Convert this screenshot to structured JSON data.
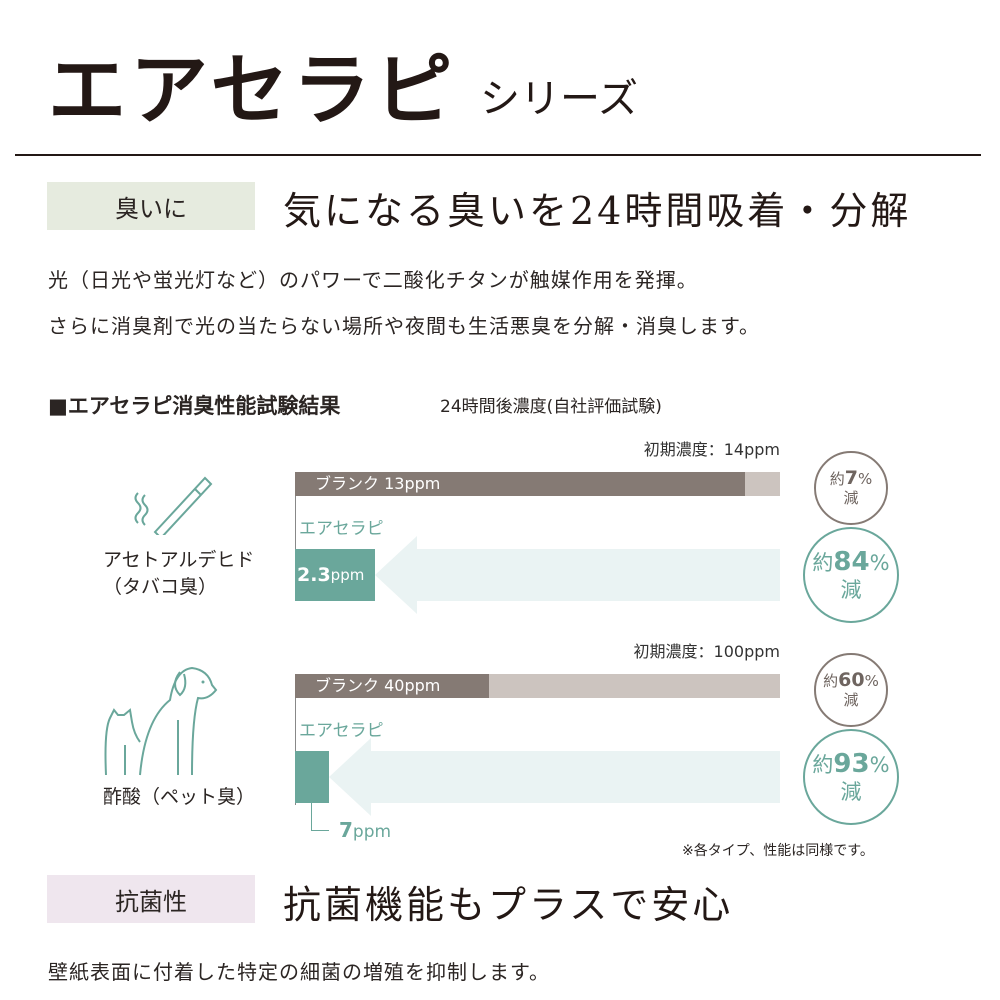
{
  "header": {
    "title": "エアセラピ",
    "subtitle": "シリーズ"
  },
  "section1": {
    "tag": "臭いに",
    "headline": "気になる臭いを24時間吸着・分解",
    "body": [
      "光（日光や蛍光灯など）のパワーで二酸化チタンが触媒作用を発揮。",
      "さらに消臭剤で光の当たらない場所や夜間も生活悪臭を分解・消臭します。"
    ]
  },
  "chart_heading": {
    "title": "■エアセラピ消臭性能試験結果",
    "subtitle": "24時間後濃度(自社評価試験)"
  },
  "colors": {
    "blank": "#857a74",
    "initial": "#ccc4bf",
    "airtherapy": "#6aa79b",
    "arrow": "#eaf3f3",
    "tag1": "#e6ebdf",
    "tag2": "#efe6ee"
  },
  "chart_data": [
    {
      "type": "bar",
      "unit": "ppm",
      "label": "アセトアルデヒド",
      "label2": "（タバコ臭）",
      "icon": "cigarette-icon",
      "initial_label": "初期濃度：14ppm",
      "initial": 14,
      "blank": 13,
      "blank_label": "ブランク 13ppm",
      "product_name": "エアセラピ",
      "product": 2.3,
      "product_value": "2.3",
      "product_unit": "ppm",
      "blank_reduction": {
        "pre": "約",
        "value": "7",
        "unit": "%",
        "post": "減"
      },
      "product_reduction": {
        "pre": "約",
        "value": "84",
        "unit": "%",
        "post": "減"
      }
    },
    {
      "type": "bar",
      "unit": "ppm",
      "label": "酢酸（ペット臭）",
      "label2": "",
      "icon": "dog-cat-icon",
      "initial_label": "初期濃度：100ppm",
      "initial": 100,
      "blank": 40,
      "blank_label": "ブランク 40ppm",
      "product_name": "エアセラピ",
      "product": 7,
      "product_value": "7",
      "product_unit": "ppm",
      "blank_reduction": {
        "pre": "約",
        "value": "60",
        "unit": "%",
        "post": "減"
      },
      "product_reduction": {
        "pre": "約",
        "value": "93",
        "unit": "%",
        "post": "減"
      }
    }
  ],
  "note": "※各タイプ、性能は同様です。",
  "section2": {
    "tag": "抗菌性",
    "headline": "抗菌機能もプラスで安心",
    "body": "壁紙表面に付着した特定の細菌の増殖を抑制します。"
  }
}
